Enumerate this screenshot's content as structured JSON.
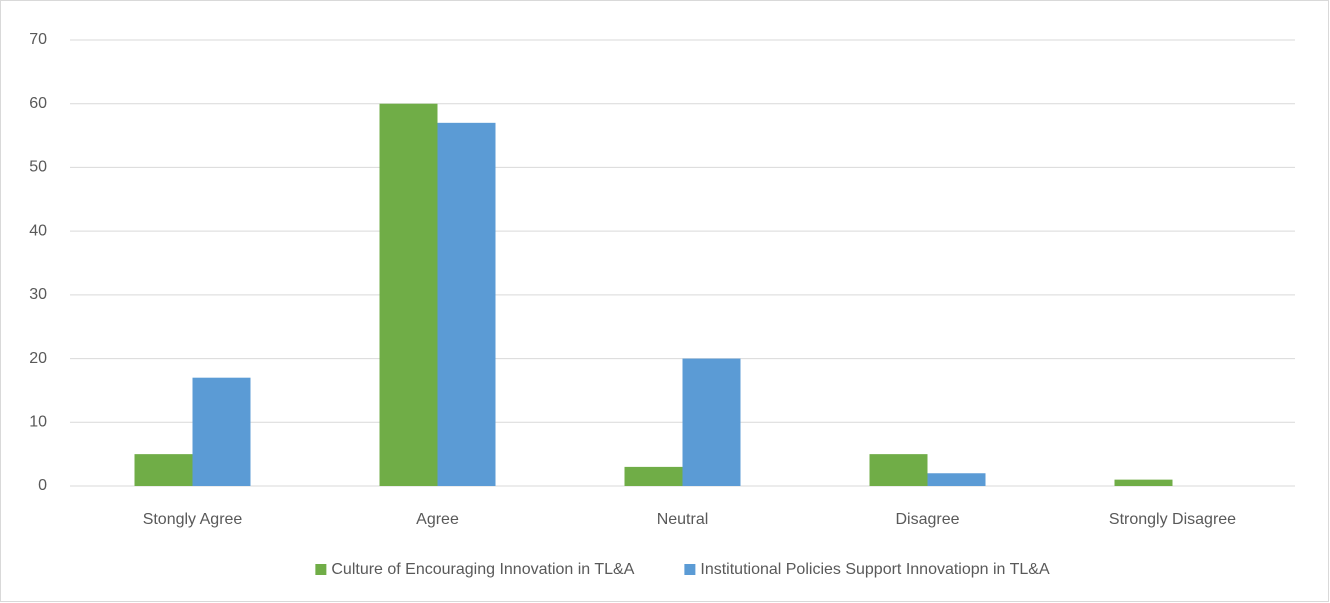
{
  "chart_data": {
    "type": "bar",
    "categories": [
      "Stongly Agree",
      "Agree",
      "Neutral",
      "Disagree",
      "Strongly Disagree"
    ],
    "series": [
      {
        "name": "Culture of Encouraging Innovation in TL&A",
        "color": "#70ad47",
        "values": [
          5,
          60,
          3,
          5,
          1
        ]
      },
      {
        "name": "Institutional Policies Support Innovatiopn in TL&A",
        "color": "#5b9bd5",
        "values": [
          17,
          57,
          20,
          2,
          0
        ]
      }
    ],
    "ylim": [
      0,
      70
    ],
    "yticks": [
      0,
      10,
      20,
      30,
      40,
      50,
      60,
      70
    ],
    "grid": true,
    "legend": "bottom"
  }
}
